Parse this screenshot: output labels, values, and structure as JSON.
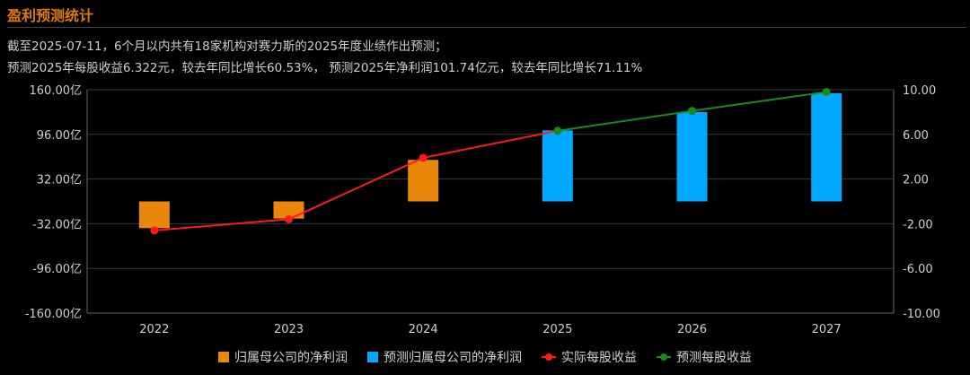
{
  "title": "盈利预测统计",
  "summary": {
    "line1": "截至2025-07-11，6个月以内共有18家机构对赛力斯的2025年度业绩作出预测；",
    "line2": "预测2025年每股收益6.322元，较去年同比增长60.53%， 预测2025年净利润101.74亿元，较去年同比增长71.11%"
  },
  "chart_data": {
    "type": "bar",
    "categories": [
      "2022",
      "2023",
      "2024",
      "2025",
      "2026",
      "2027"
    ],
    "left_axis": {
      "ticks": [
        "160.00亿",
        "96.00亿",
        "32.00亿",
        "-32.00亿",
        "-96.00亿",
        "-160.00亿"
      ],
      "range": [
        -160,
        160
      ]
    },
    "right_axis": {
      "ticks": [
        "10.00",
        "6.00",
        "2.00",
        "-2.00",
        "-6.00",
        "-10.00"
      ],
      "range": [
        -10,
        10
      ]
    },
    "series": [
      {
        "name": "归属母公司的净利润",
        "axis": "left",
        "kind": "bar",
        "color": "#e8870a",
        "values": [
          -38.3,
          -24.6,
          59.5,
          null,
          null,
          null
        ]
      },
      {
        "name": "预测归属母公司的净利润",
        "axis": "left",
        "kind": "bar",
        "color": "#00a8ff",
        "values": [
          null,
          null,
          null,
          101.7,
          128.0,
          155.0
        ]
      },
      {
        "name": "实际每股收益",
        "axis": "right",
        "kind": "line",
        "color": "#ff1a1a",
        "values": [
          -2.6,
          -1.6,
          3.9,
          null,
          null,
          null
        ]
      },
      {
        "name": "预测每股收益",
        "axis": "right",
        "kind": "line",
        "color": "#1a8a1a",
        "values": [
          null,
          null,
          null,
          6.32,
          8.1,
          9.8
        ]
      }
    ],
    "grid": true,
    "legend_position": "bottom"
  }
}
